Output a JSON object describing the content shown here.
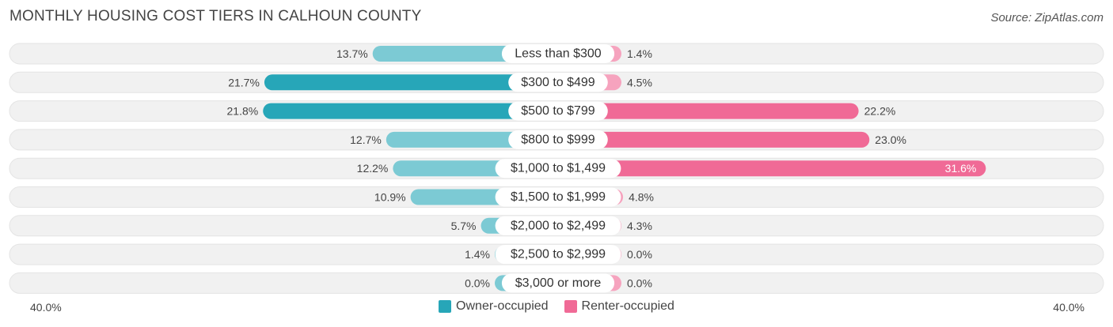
{
  "title": "MONTHLY HOUSING COST TIERS IN CALHOUN COUNTY",
  "source": "Source: ZipAtlas.com",
  "colors": {
    "owner_strong": "#27a6b8",
    "owner_light": "#7ccad4",
    "renter_strong": "#f06a96",
    "renter_light": "#f6a3be",
    "track": "#f1f1f1"
  },
  "axis": {
    "left_label": "40.0%",
    "right_label": "40.0%"
  },
  "legend": {
    "owner": "Owner-occupied",
    "renter": "Renter-occupied"
  },
  "chart_data": {
    "type": "bar",
    "orientation": "horizontal-diverging",
    "title": "MONTHLY HOUSING COST TIERS IN CALHOUN COUNTY",
    "categories": [
      "Less than $300",
      "$300 to $499",
      "$500 to $799",
      "$800 to $999",
      "$1,000 to $1,499",
      "$1,500 to $1,999",
      "$2,000 to $2,499",
      "$2,500 to $2,999",
      "$3,000 or more"
    ],
    "series": [
      {
        "name": "Owner-occupied",
        "values": [
          13.7,
          21.7,
          21.8,
          12.7,
          12.2,
          10.9,
          5.7,
          1.4,
          0.0
        ],
        "labels": [
          "13.7%",
          "21.7%",
          "21.8%",
          "12.7%",
          "12.2%",
          "10.9%",
          "5.7%",
          "1.4%",
          "0.0%"
        ]
      },
      {
        "name": "Renter-occupied",
        "values": [
          1.4,
          4.5,
          22.2,
          23.0,
          31.6,
          4.8,
          4.3,
          0.0,
          0.0
        ],
        "labels": [
          "1.4%",
          "4.5%",
          "22.2%",
          "23.0%",
          "31.6%",
          "4.8%",
          "4.3%",
          "0.0%",
          "0.0%"
        ]
      }
    ],
    "xlim": [
      -40,
      40
    ],
    "legend_position": "bottom-center"
  }
}
